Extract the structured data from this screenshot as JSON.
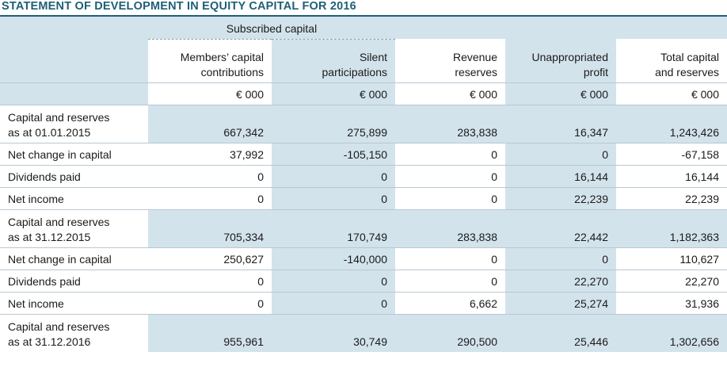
{
  "title": "STATEMENT OF DEVELOPMENT IN EQUITY CAPITAL FOR 2016",
  "header": {
    "group_label": "Subscribed capital",
    "columns": [
      {
        "line1": "Members’ capital",
        "line2": "contributions"
      },
      {
        "line1": "Silent",
        "line2": "participations"
      },
      {
        "line1": "Revenue",
        "line2": "reserves"
      },
      {
        "line1": "Unappropriated",
        "line2": "profit"
      },
      {
        "line1": "Total capital",
        "line2": "and reserves"
      }
    ],
    "units": [
      "€ 000",
      "€ 000",
      "€ 000",
      "€ 000",
      "€ 000"
    ]
  },
  "rows": [
    {
      "label1": "Capital and reserves",
      "label2": "as at 01.01.2015",
      "values": [
        "667,342",
        "275,899",
        "283,838",
        "16,347",
        "1,243,426"
      ]
    },
    {
      "label1": "Net change in capital",
      "values": [
        "37,992",
        "-105,150",
        "0",
        "0",
        "-67,158"
      ]
    },
    {
      "label1": "Dividends paid",
      "values": [
        "0",
        "0",
        "0",
        "16,144",
        "16,144"
      ]
    },
    {
      "label1": "Net income",
      "values": [
        "0",
        "0",
        "0",
        "22,239",
        "22,239"
      ]
    },
    {
      "label1": "Capital and reserves",
      "label2": "as at 31.12.2015",
      "values": [
        "705,334",
        "170,749",
        "283,838",
        "22,442",
        "1,182,363"
      ]
    },
    {
      "label1": "Net change in capital",
      "values": [
        "250,627",
        "-140,000",
        "0",
        "0",
        "110,627"
      ]
    },
    {
      "label1": "Dividends paid",
      "values": [
        "0",
        "0",
        "0",
        "22,270",
        "22,270"
      ]
    },
    {
      "label1": "Net income",
      "values": [
        "0",
        "0",
        "6,662",
        "25,274",
        "31,936"
      ]
    },
    {
      "label1": "Capital and reserves",
      "label2": "as at 31.12.2016",
      "values": [
        "955,961",
        "30,749",
        "290,500",
        "25,446",
        "1,302,656"
      ]
    }
  ],
  "colors": {
    "accent": "#1f5f78",
    "band": "#d3e3ec"
  }
}
